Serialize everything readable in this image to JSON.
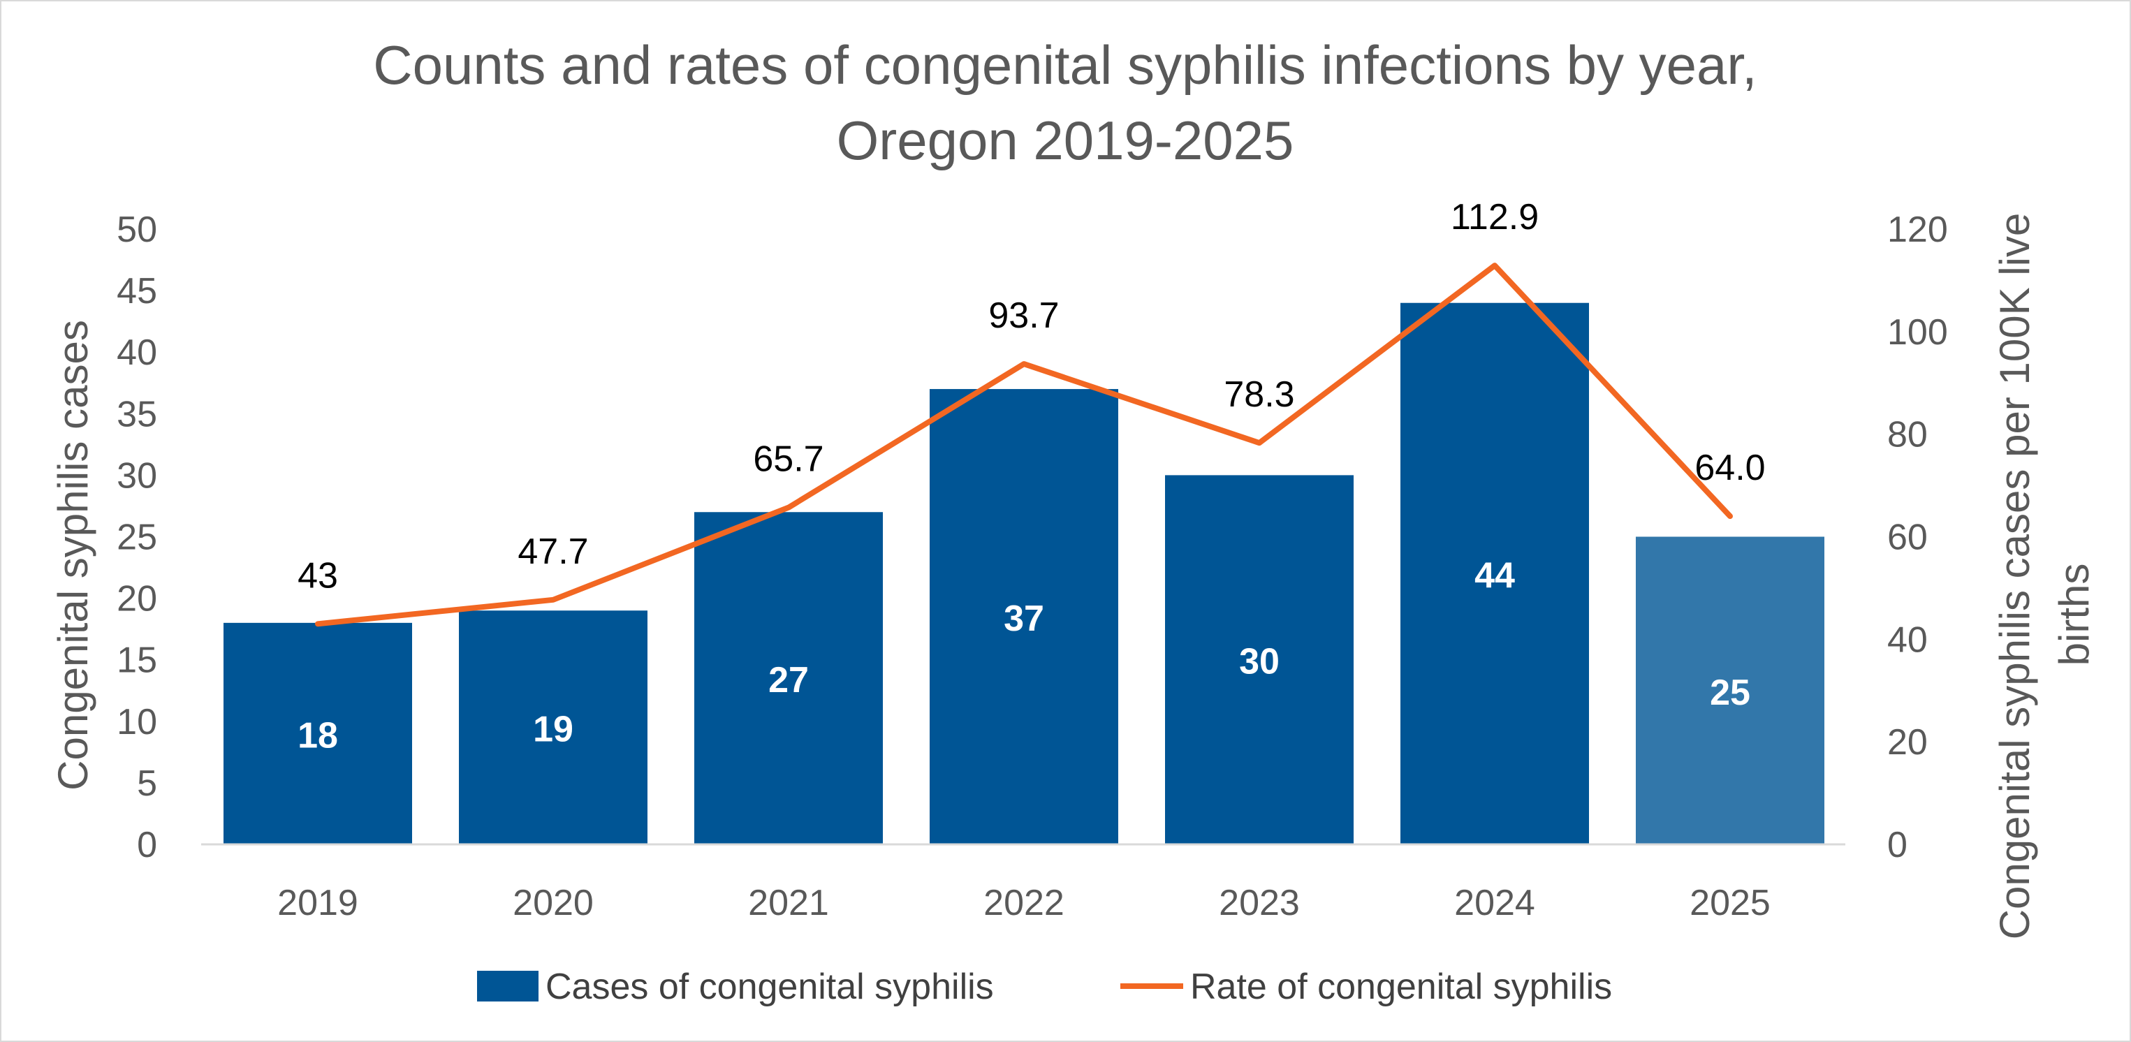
{
  "chart_data": {
    "type": "bar",
    "title": [
      "Counts and rates of congenital syphilis infections by year,",
      "Oregon 2019-2025"
    ],
    "categories": [
      "2019",
      "2020",
      "2021",
      "2022",
      "2023",
      "2024",
      "2025"
    ],
    "series": [
      {
        "name": "Cases of congenital syphilis",
        "kind": "bar",
        "axis": "left",
        "color": "#005595",
        "highlight_color": "#3277AA",
        "highlight_index": 6,
        "values": [
          18,
          19,
          27,
          37,
          30,
          44,
          25
        ],
        "labels": [
          "18",
          "19",
          "27",
          "37",
          "30",
          "44",
          "25"
        ]
      },
      {
        "name": "Rate of congenital syphilis",
        "kind": "line",
        "axis": "right",
        "color": "#F26722",
        "values": [
          43,
          47.7,
          65.7,
          93.7,
          78.3,
          112.9,
          64.0
        ],
        "labels": [
          "43",
          "47.7",
          "65.7",
          "93.7",
          "78.3",
          "112.9",
          "64.0"
        ]
      }
    ],
    "ylabel": "Congenital syphilis cases",
    "ylabel_right": [
      "Congenital syphilis cases per 100K live",
      "births"
    ],
    "ylim": [
      0,
      50
    ],
    "ylim_right": [
      0,
      120
    ],
    "yticks": [
      0,
      5,
      10,
      15,
      20,
      25,
      30,
      35,
      40,
      45,
      50
    ],
    "yticks_right": [
      0,
      20,
      40,
      60,
      80,
      100,
      120
    ],
    "grid": false,
    "legend": "bottom"
  }
}
